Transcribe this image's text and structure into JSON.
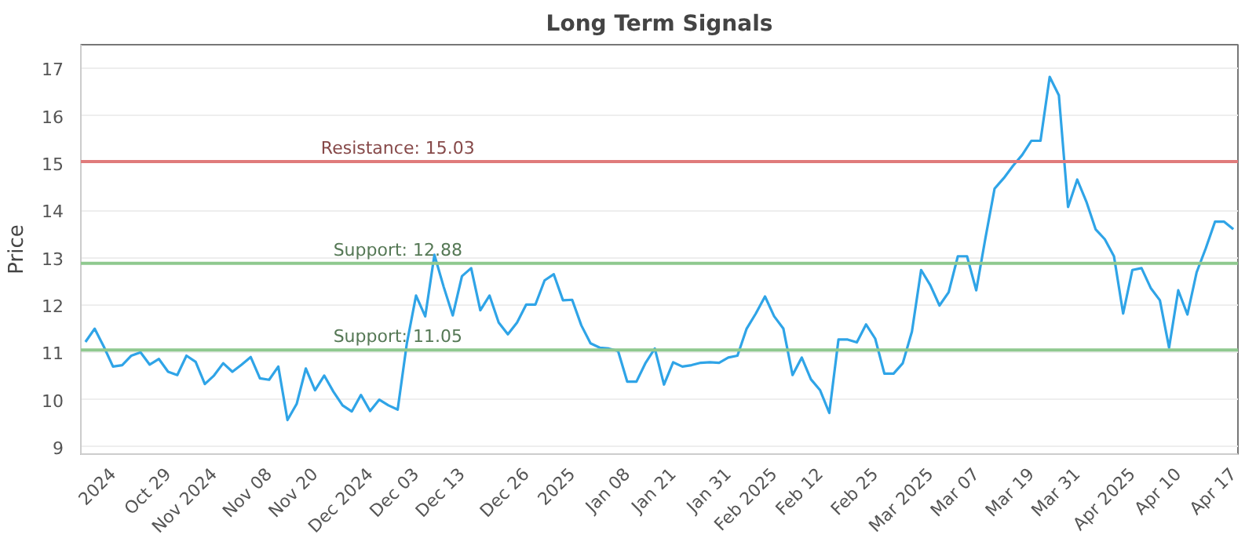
{
  "chart_data": {
    "type": "line",
    "title": "Long Term Signals",
    "ylabel": "Price",
    "categories": [
      null,
      null,
      null,
      "2024",
      null,
      null,
      null,
      null,
      null,
      "Oct 29",
      null,
      null,
      null,
      null,
      "Nov 2024",
      null,
      null,
      null,
      null,
      null,
      "Nov 08",
      null,
      null,
      null,
      null,
      "Nov 20",
      null,
      null,
      null,
      null,
      null,
      "Dec 2024",
      null,
      null,
      null,
      null,
      "Dec 03",
      null,
      null,
      null,
      null,
      "Dec 13",
      null,
      null,
      null,
      null,
      null,
      null,
      "Dec 26",
      null,
      null,
      null,
      null,
      "2025",
      null,
      null,
      null,
      null,
      null,
      "Jan 08",
      null,
      null,
      null,
      null,
      "Jan 21",
      null,
      null,
      null,
      null,
      null,
      "Jan 31",
      null,
      null,
      null,
      null,
      "Feb 2025",
      null,
      null,
      null,
      null,
      "Feb 12",
      null,
      null,
      null,
      null,
      null,
      "Feb 25",
      null,
      null,
      null,
      null,
      null,
      "Mar 2025",
      null,
      null,
      null,
      null,
      "Mar 07",
      null,
      null,
      null,
      null,
      null,
      "Mar 19",
      null,
      null,
      null,
      null,
      "Mar 31",
      null,
      null,
      null,
      null,
      null,
      "Apr 2025",
      null,
      null,
      null,
      null,
      "Apr 10",
      null,
      null,
      null,
      null,
      null,
      "Apr 17"
    ],
    "series": [
      {
        "color": "#2fa4e7",
        "values": [
          11.22,
          11.5,
          11.12,
          10.7,
          10.73,
          10.93,
          11.0,
          10.74,
          10.86,
          10.59,
          10.52,
          10.93,
          10.8,
          10.33,
          10.51,
          10.77,
          10.59,
          10.74,
          10.9,
          10.45,
          10.42,
          10.7,
          9.57,
          9.91,
          10.66,
          10.2,
          10.51,
          10.17,
          9.88,
          9.75,
          10.1,
          9.76,
          10.0,
          9.88,
          9.79,
          11.19,
          12.2,
          11.76,
          13.06,
          12.39,
          11.78,
          12.61,
          12.78,
          11.89,
          12.2,
          11.63,
          11.38,
          11.63,
          12.01,
          12.01,
          12.52,
          12.65,
          12.1,
          12.11,
          11.57,
          11.19,
          11.1,
          11.08,
          11.03,
          10.38,
          10.38,
          10.78,
          11.08,
          10.32,
          10.79,
          10.7,
          10.73,
          10.78,
          10.79,
          10.78,
          10.89,
          10.93,
          11.5,
          11.82,
          12.18,
          11.76,
          11.5,
          10.52,
          10.89,
          10.43,
          10.2,
          9.72,
          11.27,
          11.27,
          11.21,
          11.59,
          11.29,
          10.55,
          10.55,
          10.77,
          11.44,
          12.74,
          12.42,
          11.99,
          12.27,
          13.03,
          13.03,
          12.31,
          13.41,
          14.46,
          14.68,
          14.94,
          15.17,
          15.47,
          15.47,
          16.82,
          16.43,
          14.07,
          14.65,
          14.18,
          13.6,
          13.39,
          13.03,
          11.82,
          12.74,
          12.78,
          12.36,
          12.1,
          11.1,
          12.31,
          11.8,
          12.69,
          13.2,
          13.76,
          13.76,
          13.6
        ]
      }
    ],
    "ylim": [
      8.85,
      17.5
    ],
    "yticks": [
      9,
      10,
      11,
      12,
      13,
      14,
      15,
      16,
      17
    ],
    "grid": "y",
    "marker": "none",
    "line_style": "solid",
    "ref_lines": [
      {
        "axis": "y",
        "value": 15.03,
        "label": "Resistance: 15.03",
        "color": "#e07b7b"
      },
      {
        "axis": "y",
        "value": 12.88,
        "label": "Support: 12.88",
        "color": "#8fc98f"
      },
      {
        "axis": "y",
        "value": 11.05,
        "label": "Support: 11.05",
        "color": "#8fc98f"
      }
    ]
  }
}
